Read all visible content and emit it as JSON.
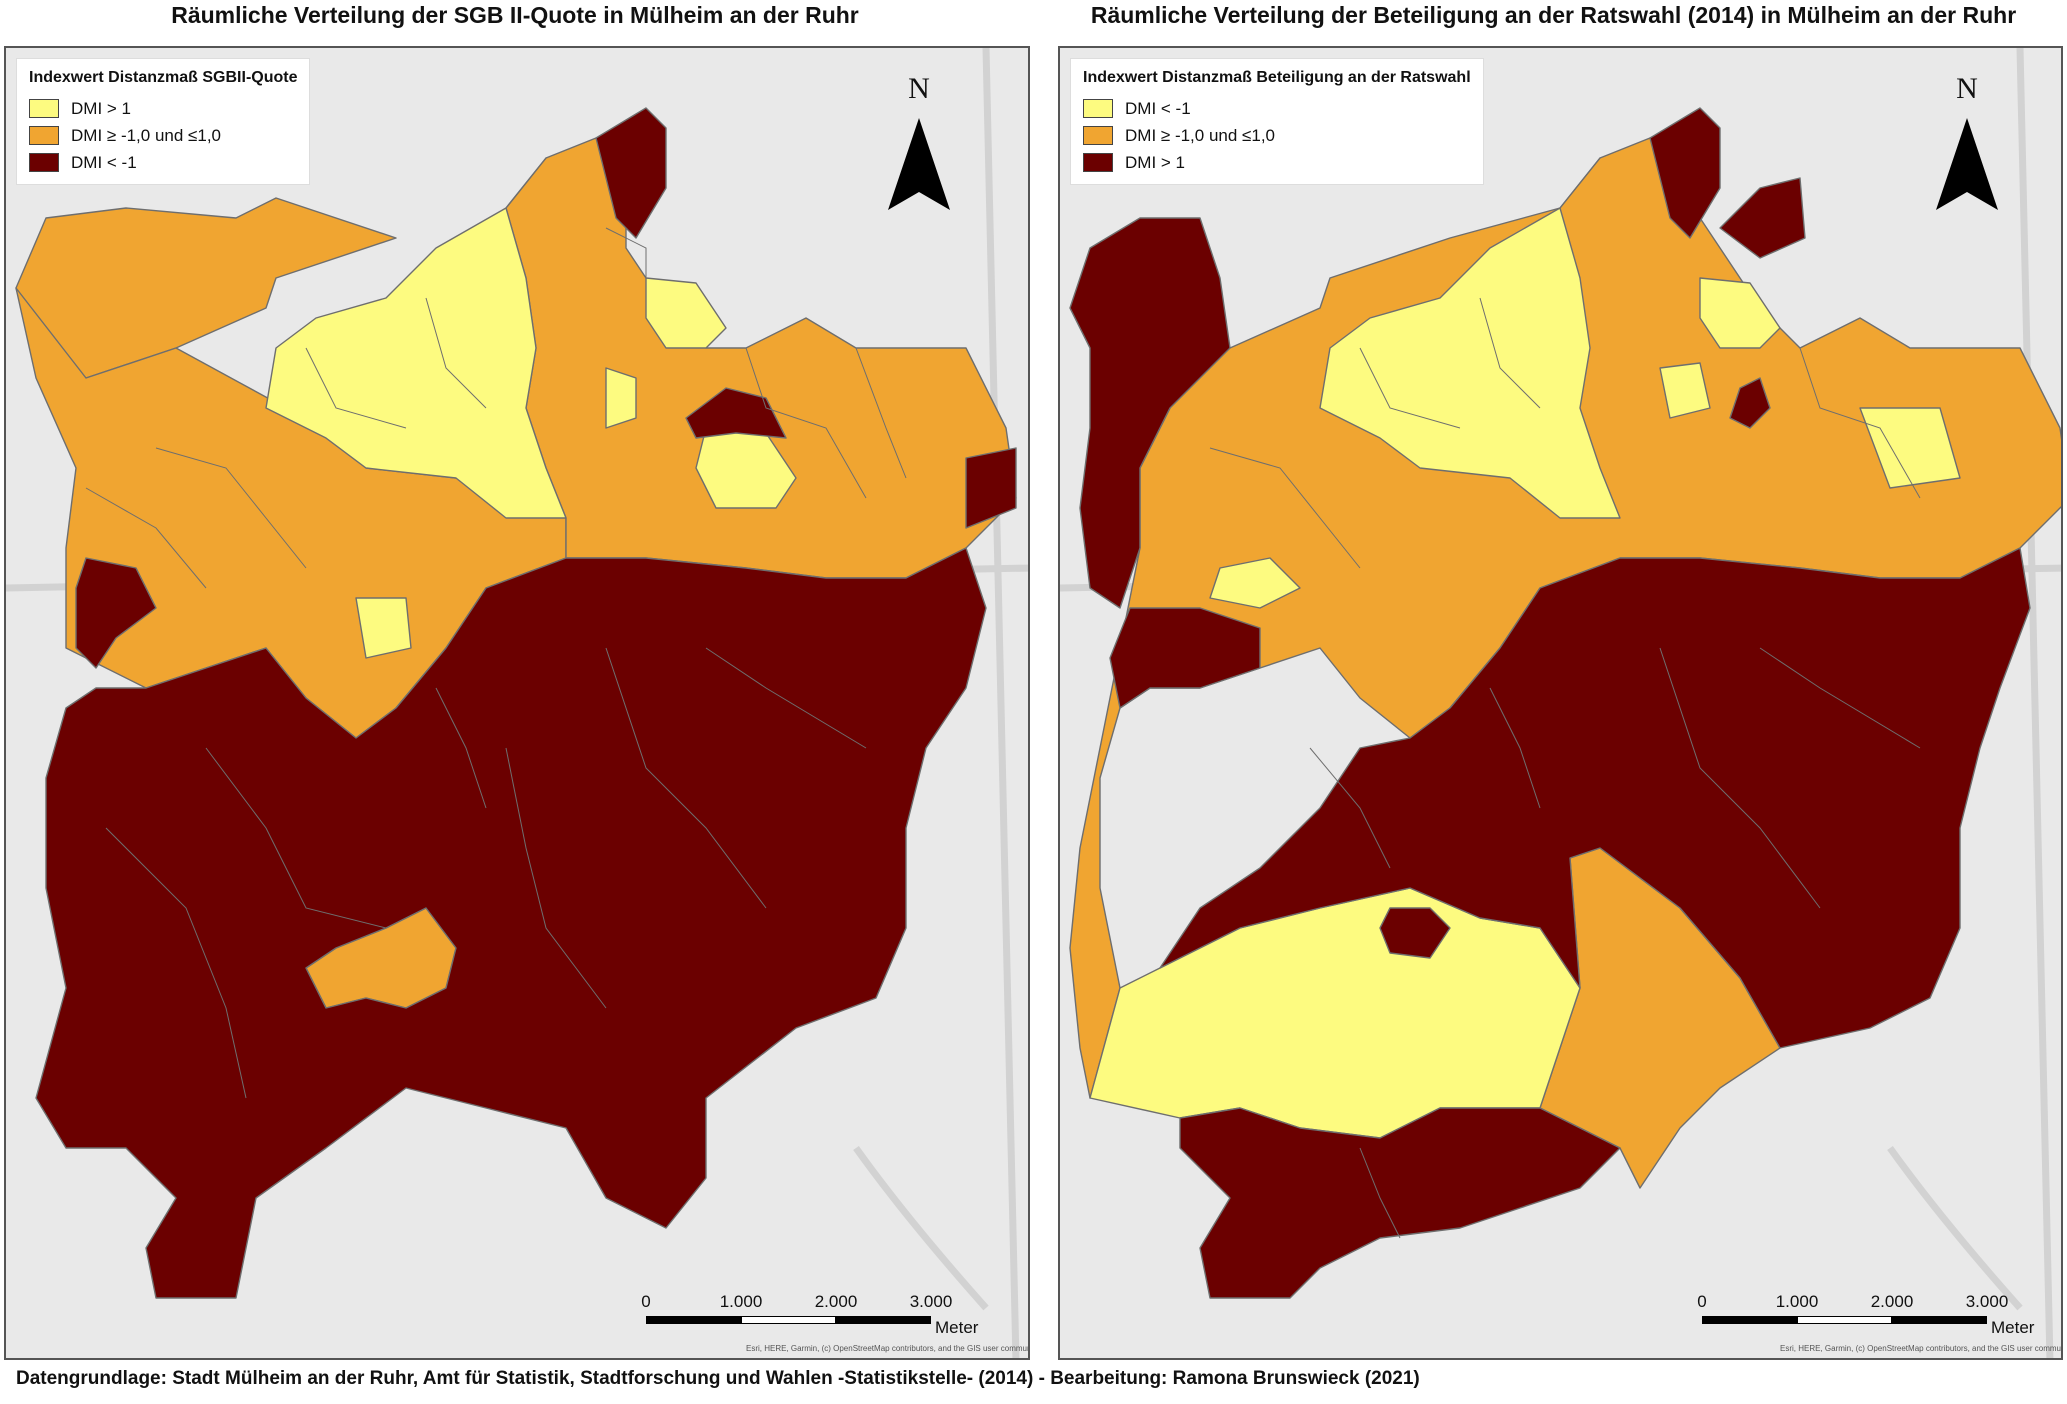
{
  "colors": {
    "light": "#fdfb80",
    "medium": "#f0a531",
    "dark": "#6b0000",
    "boundary": "#6e6e6e",
    "basemap": "#e9e9e9"
  },
  "maps": [
    {
      "title": "Räumliche Verteilung der SGB II-Quote in Mülheim an der Ruhr",
      "legend": {
        "title": "Indexwert Distanzmaß SGBII-Quote",
        "items": [
          {
            "label": "DMI > 1",
            "color": "#fdfb80"
          },
          {
            "label": "DMI ≥ -1,0 und ≤1,0",
            "color": "#f0a531"
          },
          {
            "label": "DMI < -1",
            "color": "#6b0000"
          }
        ]
      },
      "north_label": "N",
      "scale": {
        "ticks": [
          "0",
          "1.000",
          "2.000",
          "3.000"
        ],
        "unit": "Meter"
      },
      "attribution": "Esri, HERE, Garmin, (c) OpenStreetMap contributors, and the GIS user community"
    },
    {
      "title": "Räumliche Verteilung der Beteiligung an der Ratswahl (2014) in Mülheim an der Ruhr",
      "legend": {
        "title": "Indexwert Distanzmaß Beteiligung an der Ratswahl",
        "items": [
          {
            "label": "DMI < -1",
            "color": "#fdfb80"
          },
          {
            "label": "DMI ≥ -1,0 und ≤1,0",
            "color": "#f0a531"
          },
          {
            "label": "DMI > 1",
            "color": "#6b0000"
          }
        ]
      },
      "north_label": "N",
      "scale": {
        "ticks": [
          "0",
          "1.000",
          "2.000",
          "3.000"
        ],
        "unit": "Meter"
      },
      "attribution": "Esri, HERE, Garmin, (c) OpenStreetMap contributors, and the GIS user community"
    }
  ],
  "footer": "Datengrundlage: Stadt Mülheim an der Ruhr, Amt für Statistik, Stadtforschung und Wahlen -Statistikstelle- (2014)  -  Bearbeitung: Ramona Brunswieck (2021)"
}
